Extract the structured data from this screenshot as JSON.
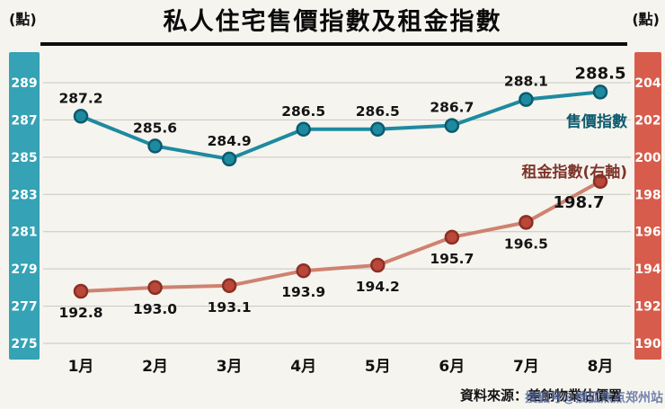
{
  "title": "私人住宅售價指數及租金指數",
  "source": "資料來源：差餉物業估價署",
  "watermark": "搜狐号@搜狐焦点郑州站",
  "chart_data": {
    "type": "line",
    "title": "私人住宅售價指數及租金指數",
    "categories": [
      "1月",
      "2月",
      "3月",
      "4月",
      "5月",
      "6月",
      "7月",
      "8月"
    ],
    "series": [
      {
        "name": "售價指數",
        "axis": "left",
        "color": "#1e8aa0",
        "marker_fill": "#1e8aa0",
        "marker_stroke": "#0d5a6e",
        "label_color": "#0d5a6e",
        "label_position": "above",
        "emphasized_index": 7,
        "values": [
          287.2,
          285.6,
          284.9,
          286.5,
          286.5,
          286.7,
          288.1,
          288.5
        ]
      },
      {
        "name": "租金指數(右軸)",
        "axis": "right",
        "color": "#cf8270",
        "marker_fill": "#b9473a",
        "marker_stroke": "#8c2f24",
        "label_color": "#7e352a",
        "label_position": "below",
        "emphasized_index": 7,
        "values": [
          192.8,
          193.0,
          193.1,
          193.9,
          194.2,
          195.7,
          196.5,
          198.7
        ]
      }
    ],
    "left_axis": {
      "unit": "(點)",
      "min": 275,
      "max": 289,
      "ticks": [
        289,
        287,
        285,
        283,
        281,
        279,
        277,
        275
      ],
      "band_color": "#35a2b5"
    },
    "right_axis": {
      "unit": "(點)",
      "min": 190,
      "max": 204,
      "ticks": [
        204,
        202,
        200,
        198,
        196,
        194,
        192,
        190
      ],
      "band_color": "#d85c4c"
    },
    "grid": true,
    "legend_position": "right-inline"
  }
}
